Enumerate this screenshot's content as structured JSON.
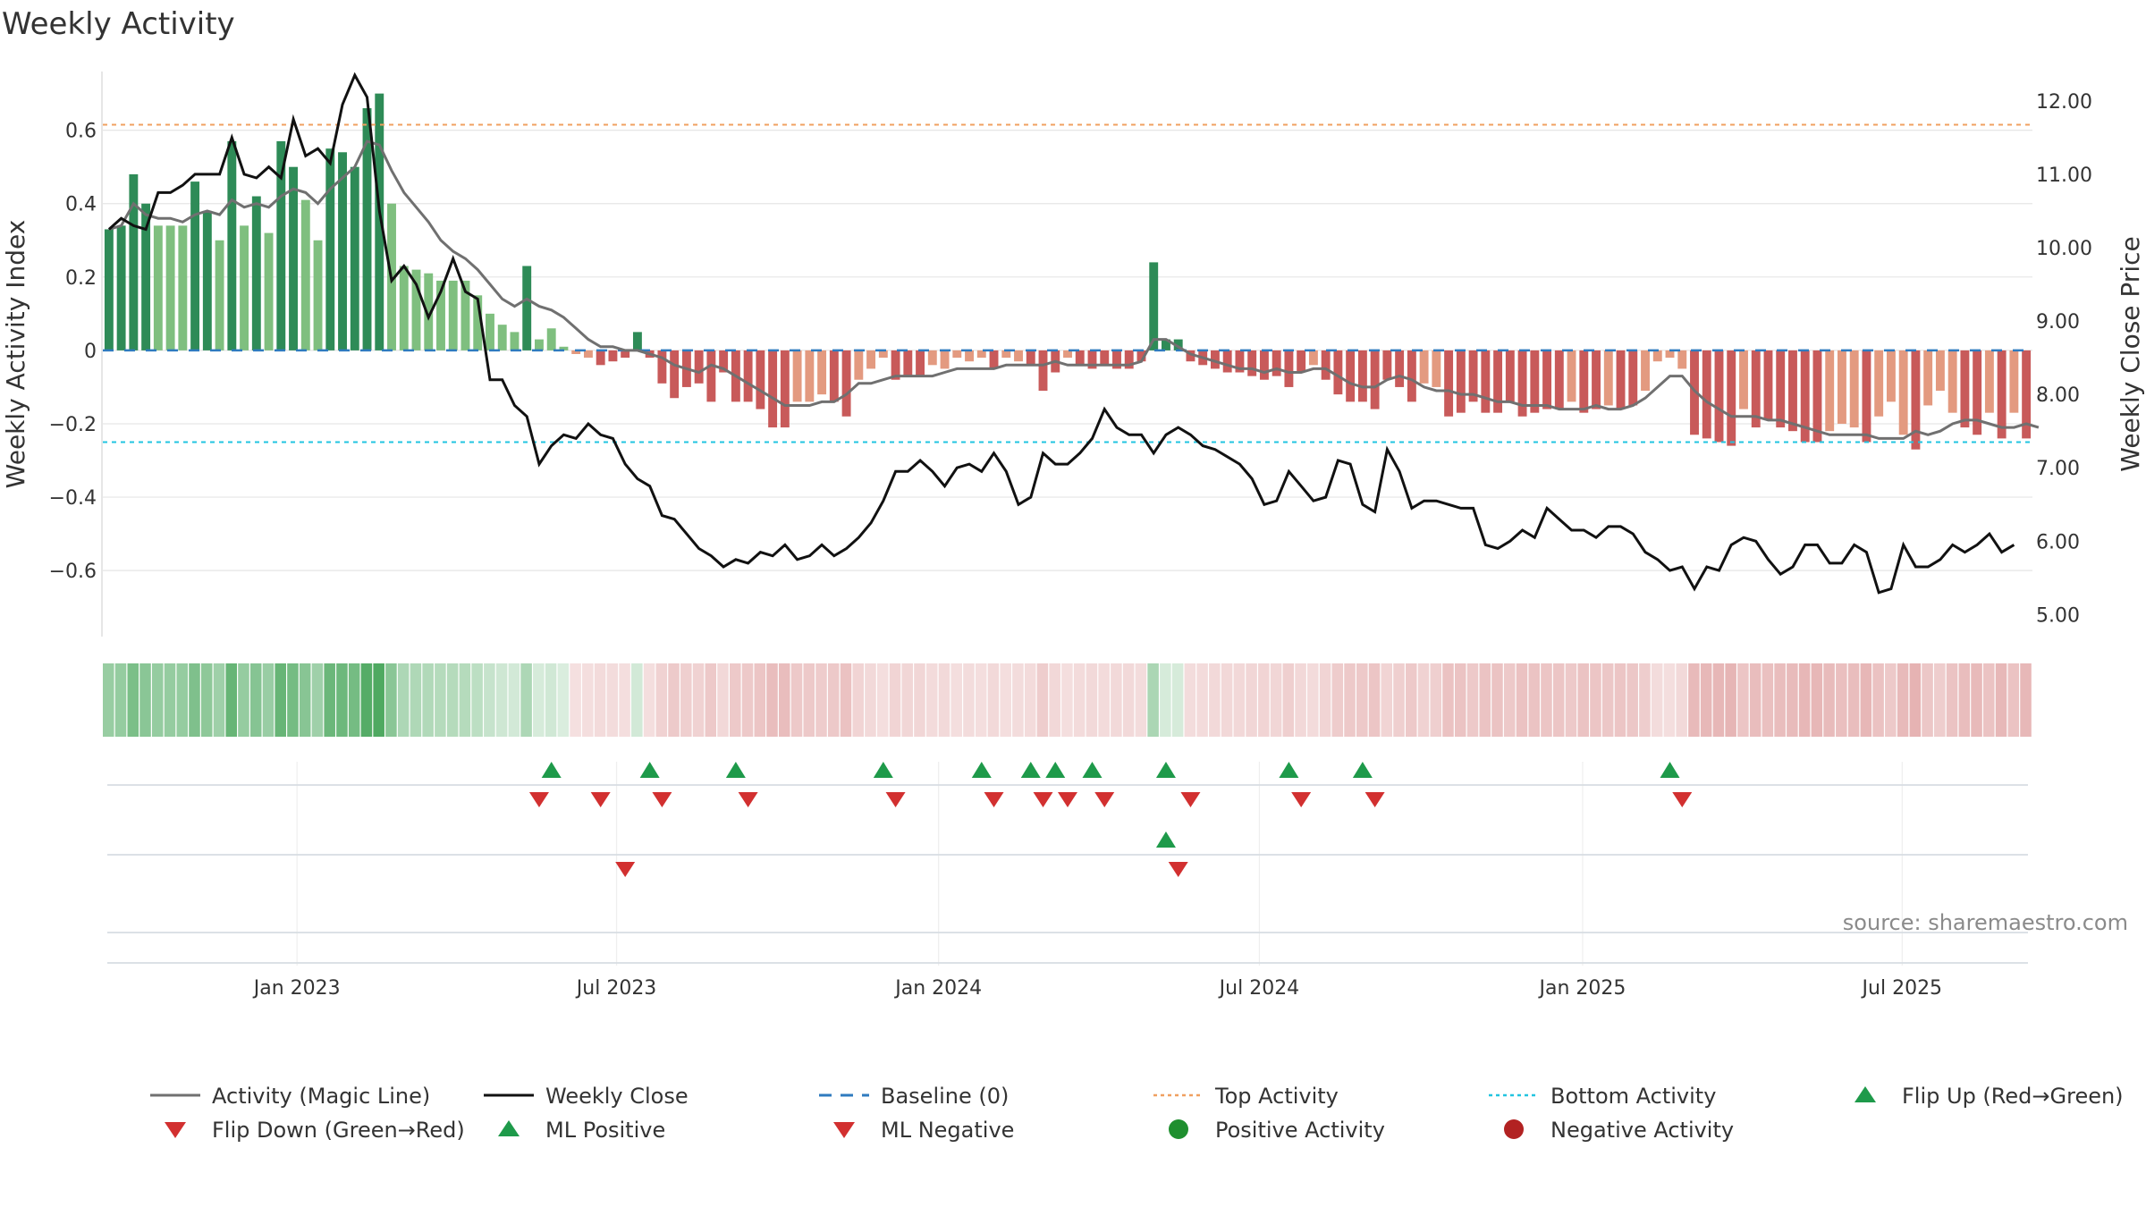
{
  "chart_data": {
    "type": "bar+line",
    "title": "Weekly Activity",
    "ylabel_left": "Weekly Activity Index",
    "ylabel_right": "Weekly Close Price",
    "ylim_left": [
      -0.78,
      0.76
    ],
    "ylim_right": [
      4.7,
      12.4
    ],
    "yticks_left": [
      {
        "v": 0.6,
        "label": "0.6"
      },
      {
        "v": 0.4,
        "label": "0.4"
      },
      {
        "v": 0.2,
        "label": "0.2"
      },
      {
        "v": 0,
        "label": "0"
      },
      {
        "v": -0.2,
        "label": "−0.2"
      },
      {
        "v": -0.4,
        "label": "−0.4"
      },
      {
        "v": -0.6,
        "label": "−0.6"
      }
    ],
    "yticks_right": [
      {
        "v": 12,
        "label": "12.00"
      },
      {
        "v": 11,
        "label": "11.00"
      },
      {
        "v": 10,
        "label": "10.00"
      },
      {
        "v": 9,
        "label": "9.00"
      },
      {
        "v": 8,
        "label": "8.00"
      },
      {
        "v": 7,
        "label": "7.00"
      },
      {
        "v": 6,
        "label": "6.00"
      },
      {
        "v": 5,
        "label": "5.00"
      }
    ],
    "x_start_week": 0,
    "x_end_week": 157,
    "xticks": [
      {
        "w": 15.3,
        "label": "Jan 2023"
      },
      {
        "w": 41.3,
        "label": "Jul 2023"
      },
      {
        "w": 67.5,
        "label": "Jan 2024"
      },
      {
        "w": 93.6,
        "label": "Jul 2024"
      },
      {
        "w": 119.9,
        "label": "Jan 2025"
      },
      {
        "w": 145.9,
        "label": "Jul 2025"
      }
    ],
    "top_activity": 0.615,
    "bottom_activity": -0.25,
    "baseline": 0,
    "activity": [
      0.33,
      0.34,
      0.48,
      0.4,
      0.34,
      0.34,
      0.34,
      0.46,
      0.38,
      0.3,
      0.57,
      0.34,
      0.42,
      0.32,
      0.57,
      0.5,
      0.41,
      0.3,
      0.55,
      0.54,
      0.5,
      0.66,
      0.7,
      0.4,
      0.23,
      0.22,
      0.21,
      0.19,
      0.19,
      0.19,
      0.15,
      0.1,
      0.07,
      0.05,
      0.23,
      0.03,
      0.06,
      0.01,
      -0.01,
      -0.02,
      -0.04,
      -0.03,
      -0.02,
      0.05,
      -0.02,
      -0.09,
      -0.13,
      -0.1,
      -0.09,
      -0.14,
      -0.06,
      -0.14,
      -0.14,
      -0.16,
      -0.21,
      -0.21,
      -0.14,
      -0.14,
      -0.12,
      -0.14,
      -0.18,
      -0.08,
      -0.05,
      -0.02,
      -0.08,
      -0.07,
      -0.07,
      -0.04,
      -0.05,
      -0.02,
      -0.03,
      -0.02,
      -0.05,
      -0.02,
      -0.03,
      -0.04,
      -0.11,
      -0.06,
      -0.02,
      -0.04,
      -0.05,
      -0.04,
      -0.05,
      -0.05,
      -0.03,
      0.24,
      0.03,
      0.03,
      -0.03,
      -0.04,
      -0.05,
      -0.06,
      -0.06,
      -0.07,
      -0.08,
      -0.07,
      -0.1,
      -0.06,
      -0.04,
      -0.08,
      -0.12,
      -0.14,
      -0.14,
      -0.16,
      -0.08,
      -0.1,
      -0.14,
      -0.09,
      -0.1,
      -0.18,
      -0.17,
      -0.14,
      -0.17,
      -0.17,
      -0.14,
      -0.18,
      -0.17,
      -0.16,
      -0.16,
      -0.14,
      -0.17,
      -0.16,
      -0.15,
      -0.16,
      -0.15,
      -0.11,
      -0.03,
      -0.02,
      -0.05,
      -0.23,
      -0.24,
      -0.25,
      -0.26,
      -0.16,
      -0.21,
      -0.19,
      -0.21,
      -0.22,
      -0.25,
      -0.25,
      -0.22,
      -0.2,
      -0.21,
      -0.25,
      -0.18,
      -0.14,
      -0.23,
      -0.27,
      -0.15,
      -0.11,
      -0.17,
      -0.21,
      -0.23,
      -0.17,
      -0.24,
      -0.17,
      -0.24
    ],
    "magic_line": [
      0.33,
      0.34,
      0.4,
      0.37,
      0.36,
      0.36,
      0.35,
      0.37,
      0.38,
      0.37,
      0.41,
      0.39,
      0.4,
      0.39,
      0.42,
      0.44,
      0.43,
      0.4,
      0.44,
      0.47,
      0.5,
      0.57,
      0.56,
      0.49,
      0.43,
      0.39,
      0.35,
      0.3,
      0.27,
      0.25,
      0.22,
      0.18,
      0.14,
      0.12,
      0.14,
      0.12,
      0.11,
      0.09,
      0.06,
      0.03,
      0.01,
      0.01,
      0.0,
      0.0,
      -0.01,
      -0.02,
      -0.04,
      -0.05,
      -0.06,
      -0.04,
      -0.05,
      -0.07,
      -0.09,
      -0.11,
      -0.13,
      -0.15,
      -0.15,
      -0.15,
      -0.14,
      -0.14,
      -0.12,
      -0.09,
      -0.09,
      -0.08,
      -0.07,
      -0.07,
      -0.07,
      -0.07,
      -0.06,
      -0.05,
      -0.05,
      -0.05,
      -0.05,
      -0.04,
      -0.04,
      -0.04,
      -0.04,
      -0.03,
      -0.04,
      -0.04,
      -0.04,
      -0.04,
      -0.04,
      -0.04,
      -0.03,
      0.03,
      0.03,
      0.01,
      -0.01,
      -0.02,
      -0.03,
      -0.04,
      -0.05,
      -0.05,
      -0.06,
      -0.05,
      -0.06,
      -0.06,
      -0.05,
      -0.05,
      -0.07,
      -0.09,
      -0.1,
      -0.1,
      -0.08,
      -0.07,
      -0.08,
      -0.1,
      -0.11,
      -0.11,
      -0.12,
      -0.12,
      -0.13,
      -0.14,
      -0.14,
      -0.15,
      -0.15,
      -0.15,
      -0.16,
      -0.16,
      -0.16,
      -0.15,
      -0.16,
      -0.16,
      -0.15,
      -0.13,
      -0.1,
      -0.07,
      -0.07,
      -0.11,
      -0.14,
      -0.16,
      -0.18,
      -0.18,
      -0.18,
      -0.19,
      -0.19,
      -0.2,
      -0.21,
      -0.22,
      -0.23,
      -0.23,
      -0.23,
      -0.23,
      -0.24,
      -0.24,
      -0.24,
      -0.22,
      -0.23,
      -0.22,
      -0.2,
      -0.19,
      -0.19,
      -0.2,
      -0.21,
      -0.21,
      -0.2,
      -0.21
    ],
    "weekly_close": [
      10.25,
      10.4,
      10.3,
      10.25,
      10.75,
      10.75,
      10.85,
      11.0,
      11.0,
      11.0,
      11.5,
      11.0,
      10.95,
      11.1,
      10.95,
      11.75,
      11.25,
      11.35,
      11.15,
      11.95,
      12.35,
      12.05,
      10.5,
      9.55,
      9.75,
      9.5,
      9.05,
      9.4,
      9.85,
      9.4,
      9.3,
      8.2,
      8.2,
      7.85,
      7.7,
      7.05,
      7.3,
      7.45,
      7.4,
      7.6,
      7.45,
      7.4,
      7.05,
      6.85,
      6.75,
      6.35,
      6.3,
      6.1,
      5.9,
      5.8,
      5.65,
      5.75,
      5.7,
      5.85,
      5.8,
      5.95,
      5.75,
      5.8,
      5.95,
      5.8,
      5.9,
      6.05,
      6.25,
      6.55,
      6.95,
      6.95,
      7.1,
      6.95,
      6.75,
      7.0,
      7.05,
      6.95,
      7.2,
      6.95,
      6.5,
      6.6,
      7.2,
      7.05,
      7.05,
      7.2,
      7.4,
      7.8,
      7.55,
      7.45,
      7.45,
      7.2,
      7.45,
      7.55,
      7.45,
      7.3,
      7.25,
      7.15,
      7.05,
      6.85,
      6.5,
      6.55,
      6.95,
      6.75,
      6.55,
      6.6,
      7.1,
      7.05,
      6.5,
      6.4,
      7.25,
      6.95,
      6.45,
      6.55,
      6.55,
      6.5,
      6.45,
      6.45,
      5.95,
      5.9,
      6.0,
      6.15,
      6.05,
      6.45,
      6.3,
      6.15,
      6.15,
      6.05,
      6.2,
      6.2,
      6.1,
      5.85,
      5.75,
      5.6,
      5.65,
      5.35,
      5.65,
      5.6,
      5.95,
      6.05,
      6.0,
      5.75,
      5.55,
      5.65,
      5.95,
      5.95,
      5.7,
      5.7,
      5.95,
      5.85,
      5.3,
      5.35,
      5.95,
      5.65,
      5.65,
      5.75,
      5.95,
      5.85,
      5.95,
      6.1,
      5.85,
      5.95
    ],
    "ml_negative_weeks": [
      42,
      87
    ],
    "ml_positive_weeks": [
      86
    ],
    "flip_up_weeks": [
      36,
      44,
      51,
      63,
      71,
      75,
      77,
      80,
      86,
      96,
      102,
      127
    ],
    "flip_down_weeks": [
      35,
      40,
      45,
      52,
      64,
      72,
      76,
      78,
      81,
      88,
      97,
      103,
      128
    ],
    "source_note": "source: sharemaestro.com",
    "legend": [
      {
        "label": "Activity (Magic Line)",
        "marker": "line-gray"
      },
      {
        "label": "Weekly Close",
        "marker": "line-black"
      },
      {
        "label": "Baseline (0)",
        "marker": "dash-blue"
      },
      {
        "label": "Top Activity",
        "marker": "dot-orange"
      },
      {
        "label": "Bottom Activity",
        "marker": "dot-cyan"
      },
      {
        "label": "Flip Up (Red→Green)",
        "marker": "tri-up-green"
      },
      {
        "label": "Flip Down (Green→Red)",
        "marker": "tri-down-red"
      },
      {
        "label": "ML Positive",
        "marker": "tri-up-green"
      },
      {
        "label": "ML Negative",
        "marker": "tri-down-red"
      },
      {
        "label": "Positive Activity",
        "marker": "circle-green"
      },
      {
        "label": "Negative Activity",
        "marker": "circle-red"
      }
    ],
    "colors": {
      "pos_strong": "#2e8b57",
      "pos_light": "#7fbf7f",
      "neg_strong": "#c85a5a",
      "neg_light": "#e39a80",
      "magic_line": "#707070",
      "close": "#111111",
      "baseline": "#2f7bbf",
      "top": "#f0a060",
      "bottom": "#22c4e0",
      "marker_green": "#1e9a4a",
      "marker_red": "#d23030"
    }
  }
}
